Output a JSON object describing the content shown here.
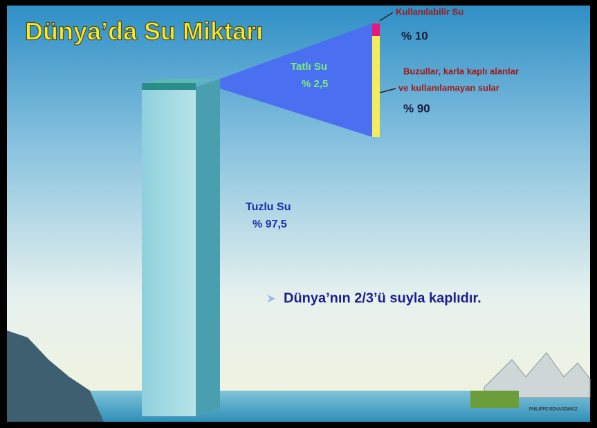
{
  "title": "Dünya’da Su Miktarı",
  "fresh_water": {
    "label": "Tatlı Su",
    "share": "% 2,5"
  },
  "usable": {
    "label": "Kullanılabilir Su",
    "share": "% 10"
  },
  "unusable": {
    "label_lines": [
      "Buzullar, karla kaplı alanlar",
      "ve kullanılamayan sular"
    ],
    "share": "% 90"
  },
  "salt_water": {
    "label": "Tuzlu Su",
    "share": "% 97,5"
  },
  "note": "Dünya’nın 2/3’ü suyla kaplıdır.",
  "credit": "PHILIPPE REKACEWICZ"
}
